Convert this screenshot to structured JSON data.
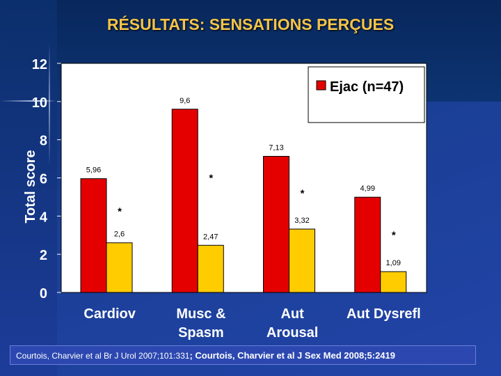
{
  "title": "RÉSULTATS: SENSATIONS PERÇUES",
  "citation": {
    "part1": "Courtois, Charvier et al Br J Urol 2007;101:331",
    "part2": "; Courtois, Charvier et al J Sex Med 2008;5:2419"
  },
  "chart_data": {
    "type": "bar",
    "ylabel": "Total score",
    "ylim": [
      0,
      12
    ],
    "yticks": [
      0,
      2,
      4,
      6,
      8,
      10,
      12
    ],
    "categories": [
      [
        "Cardiov"
      ],
      [
        "Musc &",
        "Spasm"
      ],
      [
        "Aut",
        "Arousal"
      ],
      [
        "Aut Dysrefl"
      ]
    ],
    "series": [
      {
        "name": "Ejac (n=47)",
        "color": "#e50000",
        "values": [
          5.96,
          9.6,
          7.13,
          4.99
        ],
        "labels": [
          "5,96",
          "9,6",
          "7,13",
          "4,99"
        ]
      },
      {
        "color": "#ffcc00",
        "values": [
          2.6,
          2.47,
          3.32,
          1.09
        ],
        "labels": [
          "2,6",
          "2,47",
          "3,32",
          "1,09"
        ]
      }
    ],
    "annotations": [
      "*",
      "*",
      "*",
      "*"
    ],
    "legend": "top-right",
    "grid": false
  }
}
